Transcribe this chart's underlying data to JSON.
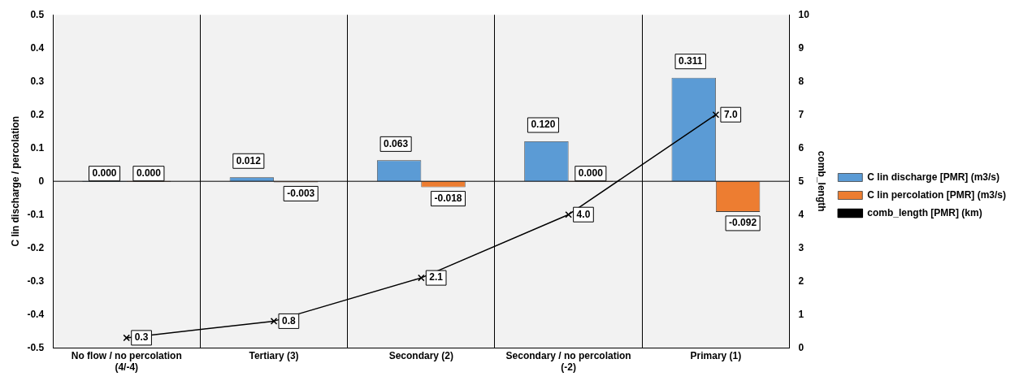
{
  "chart_data": {
    "type": "bar",
    "categories": [
      "No flow / no percolation (4/-4)",
      "Tertiary (3)",
      "Secondary (2)",
      "Secondary / no percolation (-2)",
      "Primary (1)"
    ],
    "ylabel": "C lin discharge / percolation",
    "y2label": "comb_length",
    "series": [
      {
        "name": "C lin discharge [PMR] (m3/s)",
        "color": "#5b9bd5",
        "values": [
          0,
          0.012,
          0.063,
          0.12,
          0.311
        ],
        "value_labels": [
          "0.000",
          "0.012",
          "0.063",
          "0.120",
          "0.311"
        ]
      },
      {
        "name": "C lin percolation [PMR] (m3/s)",
        "color": "#ed7d31",
        "values": [
          0,
          -0.003,
          -0.018,
          0,
          -0.092
        ],
        "value_labels": [
          "0.000",
          "-0.003",
          "-0.018",
          "0.000",
          "-0.092"
        ]
      },
      {
        "name": "comb_length [PMR] (km)",
        "type": "line",
        "axis": "y2",
        "color": "#000000",
        "marker": "cross",
        "values": [
          0.3,
          0.8,
          2.1,
          4.0,
          7.0
        ],
        "value_labels": [
          "0.3",
          "0.8",
          "2.1",
          "4.0",
          "7.0"
        ]
      }
    ],
    "ylim": [
      -0.5,
      0.5
    ],
    "yticks": [
      {
        "value": -0.5,
        "label": "-0.5"
      },
      {
        "value": -0.4,
        "label": "-0.4"
      },
      {
        "value": -0.3,
        "label": "-0.3"
      },
      {
        "value": -0.2,
        "label": "-0.2"
      },
      {
        "value": -0.1,
        "label": "-0.1"
      },
      0,
      {
        "value": 0.1,
        "label": "0.1"
      },
      {
        "value": 0.2,
        "label": "0.2"
      },
      {
        "value": 0.3,
        "label": "0.3"
      },
      {
        "value": 0.4,
        "label": "0.4"
      },
      {
        "value": 0.5,
        "label": "0.5"
      }
    ],
    "y2lim": [
      0,
      10
    ],
    "y2ticks": [
      0,
      1,
      2,
      3,
      4,
      5,
      6,
      7,
      8,
      9,
      10
    ],
    "ref_lines": [
      {
        "axis": "y",
        "value": 0,
        "color": "#000000"
      }
    ],
    "grid": "x",
    "legend": "right"
  }
}
